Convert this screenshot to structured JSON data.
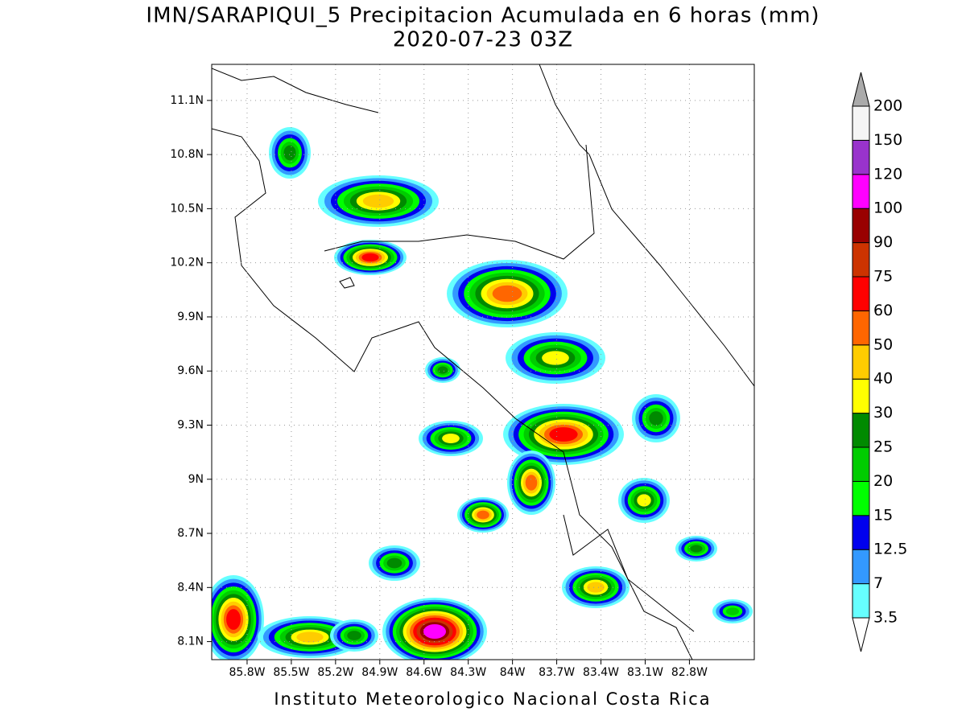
{
  "map": {
    "title": "IMN/SARAPIQUI_5 Precipitacion Acumulada en 6 horas (mm)",
    "subtitle": "2020-07-23 03Z",
    "footer": "Instituto Meteorologico Nacional Costa Rica",
    "lon_lim": [
      -86.04,
      -82.36
    ],
    "lat_lim": [
      8.0,
      11.3
    ],
    "lon_ticks": [
      {
        "value": -85.8,
        "label": "85.8W"
      },
      {
        "value": -85.5,
        "label": "85.5W"
      },
      {
        "value": -85.2,
        "label": "85.2W"
      },
      {
        "value": -84.9,
        "label": "84.9W"
      },
      {
        "value": -84.6,
        "label": "84.6W"
      },
      {
        "value": -84.3,
        "label": "84.3W"
      },
      {
        "value": -84.0,
        "label": "84W"
      },
      {
        "value": -83.7,
        "label": "83.7W"
      },
      {
        "value": -83.4,
        "label": "83.4W"
      },
      {
        "value": -83.1,
        "label": "83.1W"
      },
      {
        "value": -82.8,
        "label": "82.8W"
      }
    ],
    "lat_ticks": [
      {
        "value": 11.1,
        "label": "11.1N"
      },
      {
        "value": 10.8,
        "label": "10.8N"
      },
      {
        "value": 10.5,
        "label": "10.5N"
      },
      {
        "value": 10.2,
        "label": "10.2N"
      },
      {
        "value": 9.9,
        "label": "9.9N"
      },
      {
        "value": 9.6,
        "label": "9.6N"
      },
      {
        "value": 9.3,
        "label": "9.3N"
      },
      {
        "value": 9.0,
        "label": "9N"
      },
      {
        "value": 8.7,
        "label": "8.7N"
      },
      {
        "value": 8.4,
        "label": "8.4N"
      },
      {
        "value": 8.1,
        "label": "8.1N"
      }
    ],
    "grid": true,
    "colorbar": {
      "levels": [
        3.5,
        7,
        12.5,
        15,
        20,
        25,
        30,
        40,
        50,
        60,
        75,
        90,
        100,
        120,
        150,
        200
      ],
      "colors": [
        "#66ffff",
        "#3399ff",
        "#0000ee",
        "#00ff00",
        "#00cc00",
        "#008a00",
        "#ffff00",
        "#ffcc00",
        "#ff6600",
        "#ff0000",
        "#cc3300",
        "#990000",
        "#ff00ff",
        "#9933cc",
        "#f5f5f5"
      ],
      "under_color": "#ffffff",
      "over_color": "#aaaaaa"
    }
  }
}
